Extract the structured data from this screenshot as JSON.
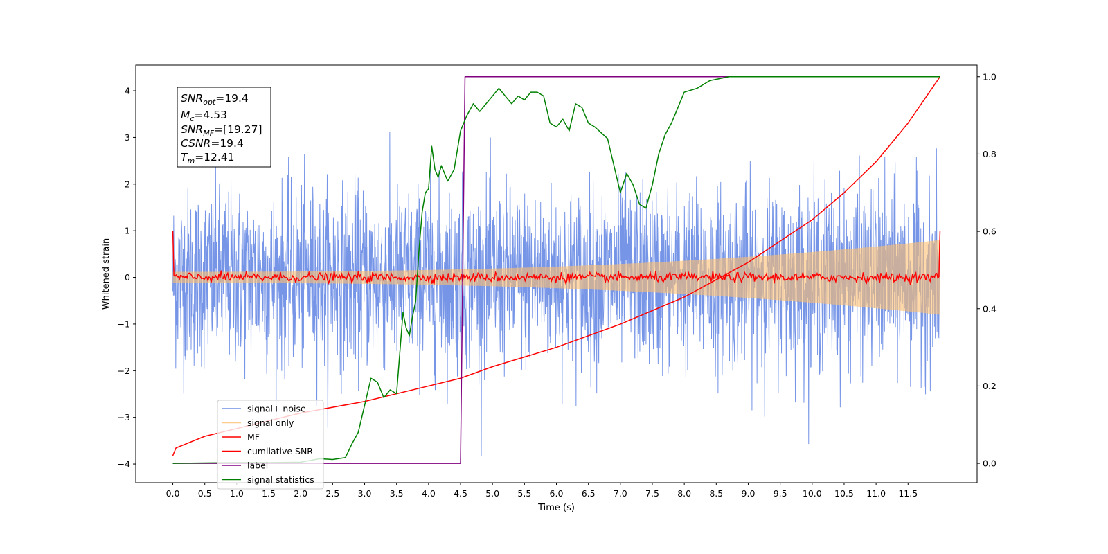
{
  "chart_data": {
    "type": "line",
    "xlabel": "Time (s)",
    "ylabel_left": "Whitened strain",
    "ylabel_right": "",
    "xlim": [
      -0.58,
      12.58
    ],
    "ylim_left": [
      -4.4,
      4.55
    ],
    "ylim_right": [
      -0.05,
      1.03
    ],
    "x_ticks": [
      "0.0",
      "0.5",
      "1.0",
      "1.5",
      "2.0",
      "2.5",
      "3.0",
      "3.5",
      "4.0",
      "4.5",
      "5.0",
      "5.5",
      "6.0",
      "6.5",
      "7.0",
      "7.5",
      "8.0",
      "8.5",
      "9.0",
      "9.5",
      "10.0",
      "10.5",
      "11.0",
      "11.5"
    ],
    "y_ticks_left": [
      "−4",
      "−3",
      "−2",
      "−1",
      "0",
      "1",
      "2",
      "3",
      "4"
    ],
    "y_ticks_right": [
      "0.0",
      "0.2",
      "0.4",
      "0.6",
      "0.8",
      "1.0"
    ],
    "grid": false,
    "legend_position": "lower-left",
    "annotation": {
      "snr_opt": {
        "sym": "SNR",
        "sub": "opt",
        "value": "=19.4"
      },
      "mc": {
        "sym": "M",
        "sub": "c",
        "value": "=4.53"
      },
      "snr_mf": {
        "sym": "SNR",
        "sub": "MF",
        "value": "=[19.27]"
      },
      "csnr": {
        "sym": "CSNR",
        "sub": "",
        "value": "=19.4"
      },
      "tm": {
        "sym": "T",
        "sub": "m",
        "value": "=12.41"
      }
    },
    "series": [
      {
        "name": "signal+ noise",
        "color": "#6f8fe6",
        "axis": "left",
        "kind": "noise",
        "x_range": [
          0.0,
          12.0
        ],
        "std": 0.95,
        "clip": [
          -4.0,
          4.2
        ]
      },
      {
        "name": "signal only",
        "color": "#ffbf6f",
        "axis": "left",
        "kind": "chirp-envelope",
        "x_range": [
          0.0,
          12.0
        ],
        "amp_start": 0.12,
        "amp_end": 0.8
      },
      {
        "name": "MF",
        "color": "#ff0000",
        "axis": "left",
        "kind": "noisy-flat",
        "x_range": [
          0.0,
          12.0
        ],
        "level": 0.0,
        "noise": 0.05,
        "start_value": 1.0,
        "end_value": 1.0
      },
      {
        "name": "cumilative SNR",
        "color": "#ff0000",
        "axis": "right",
        "x": [
          0.0,
          0.05,
          0.5,
          1.0,
          2.0,
          3.0,
          4.0,
          4.5,
          5.0,
          6.0,
          7.0,
          8.0,
          9.0,
          10.0,
          10.5,
          11.0,
          11.5,
          12.0
        ],
        "y": [
          0.02,
          0.04,
          0.07,
          0.09,
          0.13,
          0.16,
          0.2,
          0.22,
          0.25,
          0.3,
          0.36,
          0.43,
          0.52,
          0.63,
          0.7,
          0.78,
          0.88,
          1.0
        ]
      },
      {
        "name": "label",
        "color": "#800080",
        "axis": "right",
        "x": [
          0.0,
          4.5,
          4.57,
          12.0
        ],
        "y": [
          0.0,
          0.0,
          1.0,
          1.0
        ]
      },
      {
        "name": "signal statistics",
        "color": "#008000",
        "axis": "right",
        "x": [
          0.0,
          0.5,
          1.0,
          1.5,
          2.0,
          2.3,
          2.5,
          2.7,
          2.8,
          2.9,
          3.0,
          3.1,
          3.2,
          3.3,
          3.4,
          3.5,
          3.6,
          3.65,
          3.7,
          3.75,
          3.8,
          3.85,
          3.9,
          3.95,
          4.0,
          4.05,
          4.1,
          4.15,
          4.2,
          4.3,
          4.4,
          4.5,
          4.6,
          4.7,
          4.8,
          4.9,
          5.0,
          5.1,
          5.2,
          5.3,
          5.4,
          5.5,
          5.6,
          5.7,
          5.8,
          5.9,
          6.0,
          6.1,
          6.2,
          6.3,
          6.4,
          6.5,
          6.6,
          6.8,
          7.0,
          7.1,
          7.2,
          7.3,
          7.4,
          7.5,
          7.6,
          7.7,
          7.8,
          7.9,
          8.0,
          8.2,
          8.4,
          8.7,
          9.0,
          10.0,
          11.0,
          12.0
        ],
        "y": [
          0.0,
          0.001,
          0.002,
          0.002,
          0.003,
          0.012,
          0.01,
          0.015,
          0.05,
          0.08,
          0.15,
          0.22,
          0.21,
          0.17,
          0.19,
          0.18,
          0.39,
          0.35,
          0.33,
          0.38,
          0.42,
          0.55,
          0.65,
          0.7,
          0.71,
          0.82,
          0.76,
          0.74,
          0.77,
          0.73,
          0.76,
          0.86,
          0.9,
          0.93,
          0.91,
          0.93,
          0.95,
          0.97,
          0.95,
          0.93,
          0.95,
          0.94,
          0.96,
          0.96,
          0.95,
          0.88,
          0.87,
          0.89,
          0.86,
          0.93,
          0.92,
          0.88,
          0.87,
          0.84,
          0.7,
          0.75,
          0.72,
          0.67,
          0.66,
          0.72,
          0.8,
          0.85,
          0.88,
          0.92,
          0.96,
          0.97,
          0.99,
          1.0,
          1.0,
          1.0,
          1.0,
          1.0
        ]
      }
    ]
  }
}
